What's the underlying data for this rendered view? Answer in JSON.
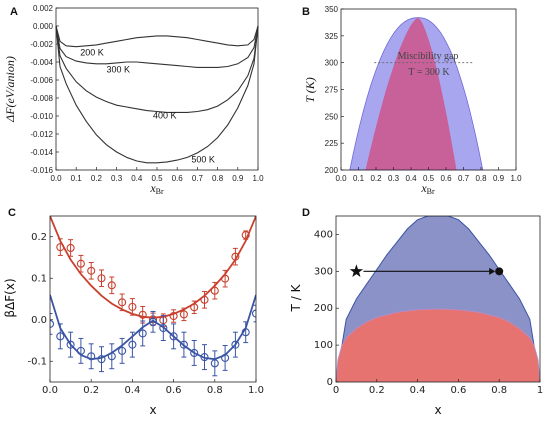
{
  "chart_data": [
    {
      "panel": "A",
      "type": "line",
      "xlabel": "x",
      "xlabel_sub": "Br",
      "ylabel": "ΔF(eV/anion)",
      "xlim": [
        0,
        1
      ],
      "ylim": [
        -0.016,
        0.002
      ],
      "xticks": [
        "0.0",
        "0.1",
        "0.2",
        "0.3",
        "0.4",
        "0.5",
        "0.6",
        "0.7",
        "0.8",
        "0.9",
        "1.0"
      ],
      "yticks": [
        "0.002",
        "0.000",
        "-0.002",
        "-0.004",
        "-0.006",
        "-0.008",
        "-0.010",
        "-0.012",
        "-0.014",
        "-0.016"
      ],
      "x": [
        0.0,
        0.02,
        0.05,
        0.1,
        0.15,
        0.2,
        0.25,
        0.3,
        0.35,
        0.4,
        0.45,
        0.5,
        0.55,
        0.6,
        0.65,
        0.7,
        0.75,
        0.8,
        0.85,
        0.9,
        0.95,
        0.98,
        1.0
      ],
      "series": [
        {
          "name": "200 K",
          "values": [
            0.0,
            -0.0017,
            -0.0022,
            -0.0023,
            -0.0022,
            -0.0021,
            -0.0019,
            -0.0017,
            -0.0015,
            -0.0013,
            -0.0012,
            -0.0011,
            -0.0011,
            -0.0012,
            -0.0013,
            -0.0015,
            -0.0017,
            -0.0019,
            -0.0021,
            -0.0022,
            -0.0021,
            -0.0015,
            0.0
          ]
        },
        {
          "name": "300 K",
          "values": [
            0.0,
            -0.0025,
            -0.0034,
            -0.0039,
            -0.0041,
            -0.0042,
            -0.0042,
            -0.0041,
            -0.004,
            -0.004,
            -0.0041,
            -0.0042,
            -0.0043,
            -0.0044,
            -0.0045,
            -0.0046,
            -0.0046,
            -0.0046,
            -0.0045,
            -0.0042,
            -0.0035,
            -0.0024,
            0.0
          ]
        },
        {
          "name": "400 K",
          "values": [
            0.0,
            -0.0033,
            -0.0047,
            -0.0062,
            -0.0072,
            -0.0079,
            -0.0084,
            -0.0088,
            -0.009,
            -0.0092,
            -0.0094,
            -0.0095,
            -0.0096,
            -0.0096,
            -0.0096,
            -0.0095,
            -0.0093,
            -0.0089,
            -0.0082,
            -0.0072,
            -0.0055,
            -0.0036,
            0.0
          ]
        },
        {
          "name": "500 K",
          "values": [
            0.0,
            -0.0045,
            -0.0064,
            -0.0088,
            -0.0106,
            -0.0121,
            -0.0132,
            -0.014,
            -0.0146,
            -0.015,
            -0.0152,
            -0.0152,
            -0.0151,
            -0.0149,
            -0.0146,
            -0.0141,
            -0.0134,
            -0.0124,
            -0.011,
            -0.0091,
            -0.0066,
            -0.0042,
            0.0
          ]
        }
      ]
    },
    {
      "panel": "B",
      "type": "area",
      "xlabel": "x",
      "xlabel_sub": "Br",
      "ylabel": "T (K)",
      "xlim": [
        0,
        1
      ],
      "ylim": [
        200,
        350
      ],
      "xticks": [
        "0.0",
        "0.1",
        "0.2",
        "0.3",
        "0.4",
        "0.5",
        "0.6",
        "0.7",
        "0.8",
        "0.9",
        "1.0"
      ],
      "yticks": [
        "350",
        "325",
        "300",
        "275",
        "250",
        "225",
        "200"
      ],
      "annotation": "Miscibility gap",
      "annotation2": "T = 300 K",
      "dashed_line_T": 300,
      "outer_peak": {
        "x": 0.44,
        "T": 342
      },
      "outer_base": {
        "x_left": 0.05,
        "x_right": 0.81,
        "T": 200
      },
      "inner_peak": {
        "x": 0.44,
        "T": 342
      },
      "inner_base": {
        "x_left": 0.14,
        "x_right": 0.66,
        "T": 200
      },
      "colors": {
        "outer": "#a9a6f0",
        "inner": "#c8609a"
      }
    },
    {
      "panel": "C",
      "type": "scatter",
      "xlabel": "x",
      "ylabel": "βΔF(x)",
      "xlim": [
        0,
        1
      ],
      "ylim": [
        -0.15,
        0.25
      ],
      "xticks": [
        "0.0",
        "0.2",
        "0.4",
        "0.6",
        "0.8",
        "1.0"
      ],
      "yticks": [
        "0.2",
        "0.1",
        "0.0",
        "-0.1"
      ],
      "series": [
        {
          "name": "red",
          "color": "#c9402e",
          "points": [
            [
              0.05,
              0.175,
              0.02
            ],
            [
              0.1,
              0.173,
              0.02
            ],
            [
              0.15,
              0.135,
              0.02
            ],
            [
              0.2,
              0.118,
              0.02
            ],
            [
              0.25,
              0.1,
              0.02
            ],
            [
              0.3,
              0.083,
              0.02
            ],
            [
              0.35,
              0.042,
              0.02
            ],
            [
              0.4,
              0.031,
              0.02
            ],
            [
              0.45,
              0.012,
              0.02
            ],
            [
              0.5,
              0.001,
              0.015
            ],
            [
              0.55,
              -0.001,
              0.015
            ],
            [
              0.6,
              0.009,
              0.015
            ],
            [
              0.65,
              0.013,
              0.015
            ],
            [
              0.7,
              0.03,
              0.015
            ],
            [
              0.75,
              0.048,
              0.02
            ],
            [
              0.8,
              0.07,
              0.02
            ],
            [
              0.85,
              0.099,
              0.02
            ],
            [
              0.9,
              0.152,
              0.02
            ],
            [
              0.95,
              0.204,
              0.01
            ]
          ],
          "fit_x": [
            0.0,
            0.05,
            0.1,
            0.15,
            0.2,
            0.25,
            0.3,
            0.35,
            0.4,
            0.45,
            0.5,
            0.55,
            0.6,
            0.65,
            0.7,
            0.75,
            0.8,
            0.85,
            0.9,
            0.95,
            1.0
          ],
          "fit_y": [
            0.25,
            0.19,
            0.145,
            0.11,
            0.082,
            0.058,
            0.039,
            0.025,
            0.014,
            0.007,
            0.005,
            0.007,
            0.014,
            0.025,
            0.039,
            0.058,
            0.082,
            0.11,
            0.145,
            0.19,
            0.25
          ]
        },
        {
          "name": "blue",
          "color": "#3a55a5",
          "points": [
            [
              0.0,
              -0.01,
              0.025
            ],
            [
              0.05,
              -0.04,
              0.03
            ],
            [
              0.1,
              -0.06,
              0.03
            ],
            [
              0.15,
              -0.075,
              0.03
            ],
            [
              0.2,
              -0.088,
              0.03
            ],
            [
              0.25,
              -0.095,
              0.03
            ],
            [
              0.3,
              -0.088,
              0.03
            ],
            [
              0.35,
              -0.075,
              0.03
            ],
            [
              0.4,
              -0.06,
              0.03
            ],
            [
              0.45,
              -0.033,
              0.03
            ],
            [
              0.5,
              -0.005,
              0.025
            ],
            [
              0.55,
              -0.02,
              0.03
            ],
            [
              0.6,
              -0.04,
              0.03
            ],
            [
              0.65,
              -0.06,
              0.03
            ],
            [
              0.7,
              -0.08,
              0.03
            ],
            [
              0.75,
              -0.09,
              0.03
            ],
            [
              0.8,
              -0.105,
              0.03
            ],
            [
              0.85,
              -0.092,
              0.03
            ],
            [
              0.9,
              -0.06,
              0.03
            ],
            [
              0.95,
              -0.03,
              0.025
            ],
            [
              1.0,
              0.015,
              0.02
            ]
          ],
          "fit_x": [
            0.0,
            0.05,
            0.1,
            0.15,
            0.2,
            0.25,
            0.3,
            0.35,
            0.4,
            0.45,
            0.5,
            0.55,
            0.6,
            0.65,
            0.7,
            0.75,
            0.8,
            0.85,
            0.9,
            0.95,
            1.0
          ],
          "fit_y": [
            0.06,
            -0.02,
            -0.06,
            -0.085,
            -0.095,
            -0.092,
            -0.08,
            -0.062,
            -0.04,
            -0.018,
            -0.002,
            -0.018,
            -0.04,
            -0.062,
            -0.08,
            -0.092,
            -0.095,
            -0.085,
            -0.06,
            -0.02,
            0.06
          ]
        }
      ]
    },
    {
      "panel": "D",
      "type": "area",
      "xlabel": "x",
      "ylabel": "T / K",
      "xlim": [
        0,
        1
      ],
      "ylim": [
        0,
        450
      ],
      "xticks": [
        "0",
        "0.2",
        "0.4",
        "0.6",
        "0.8",
        "1"
      ],
      "yticks": [
        "400",
        "300",
        "200",
        "100",
        "0"
      ],
      "outer_curve_x": [
        0.0,
        0.05,
        0.1,
        0.15,
        0.2,
        0.25,
        0.3,
        0.35,
        0.4,
        0.45,
        0.5,
        0.55,
        0.6,
        0.65,
        0.7,
        0.75,
        0.8,
        0.85,
        0.9,
        0.95,
        1.0
      ],
      "outer_curve_T": [
        0,
        170,
        225,
        265,
        305,
        345,
        380,
        415,
        440,
        450,
        450,
        450,
        440,
        415,
        380,
        345,
        305,
        265,
        225,
        170,
        0
      ],
      "inner_curve_x": [
        0.0,
        0.01,
        0.03,
        0.05,
        0.1,
        0.15,
        0.2,
        0.3,
        0.4,
        0.5,
        0.6,
        0.7,
        0.8,
        0.85,
        0.9,
        0.95,
        0.97,
        0.99,
        1.0
      ],
      "inner_curve_T": [
        0,
        60,
        100,
        120,
        145,
        163,
        175,
        189,
        196,
        198,
        196,
        189,
        175,
        163,
        145,
        120,
        100,
        60,
        0
      ],
      "star": {
        "x": 0.1,
        "T": 300
      },
      "dot": {
        "x": 0.8,
        "T": 300
      },
      "colors": {
        "outer": "#8b92c8",
        "inner": "#e77370"
      }
    }
  ],
  "panels": {
    "A": "A",
    "B": "B",
    "C": "C",
    "D": "D"
  }
}
